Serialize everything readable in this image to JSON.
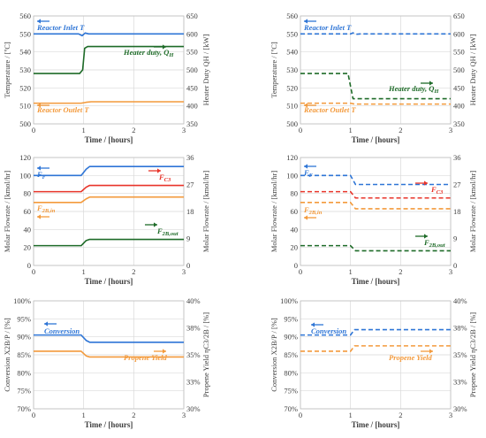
{
  "chart_data": [
    {
      "type": "line",
      "panel": "top-left",
      "title": "",
      "xlabel": "Time / [hours]",
      "ylabel": "Temperature / [ºC]",
      "y2label": "Heater Duty QH / [kW]",
      "xlim": [
        0,
        3
      ],
      "ylim": [
        500,
        560
      ],
      "y2lim": [
        350,
        650
      ],
      "xticks": [
        "0",
        "1",
        "2",
        "3"
      ],
      "yticks": [
        "500",
        "510",
        "520",
        "530",
        "540",
        "550",
        "560"
      ],
      "y2ticks": [
        "350",
        "400",
        "450",
        "500",
        "550",
        "600",
        "650"
      ],
      "series": [
        {
          "name": "Reactor Inlet T",
          "axis": "left",
          "color": "#2e75d6",
          "dash": "solid",
          "x": [
            0,
            0.9,
            0.97,
            1.03,
            1.1,
            3
          ],
          "y": [
            550,
            550,
            549,
            550.5,
            550,
            550
          ]
        },
        {
          "name": "Heater duty, QH",
          "axis": "right",
          "color": "#1e6b28",
          "dash": "solid",
          "x": [
            0,
            0.92,
            0.98,
            1.02,
            1.08,
            3
          ],
          "y": [
            490,
            490,
            500,
            560,
            565,
            565
          ]
        },
        {
          "name": "Reactor Outlet T",
          "axis": "left",
          "color": "#f39a3c",
          "dash": "solid",
          "x": [
            0,
            0.95,
            1.05,
            1.15,
            3
          ],
          "y": [
            511.5,
            511.5,
            512,
            512.3,
            512.3
          ]
        }
      ],
      "annotations": [
        {
          "text": "Reactor Inlet T",
          "color": "#2e75d6",
          "arrow": "left"
        },
        {
          "text": "Heater duty, Q",
          "sub": "H",
          "color": "#1e6b28",
          "arrow": "right"
        },
        {
          "text": "Reactor Outlet T",
          "color": "#f39a3c",
          "arrow": "left"
        }
      ]
    },
    {
      "type": "line",
      "panel": "top-right",
      "title": "",
      "xlabel": "Time / [hours]",
      "ylabel": "Temperature / [ºC]",
      "y2label": "Heater Duty QH / [kW]",
      "xlim": [
        0,
        3
      ],
      "ylim": [
        500,
        560
      ],
      "y2lim": [
        350,
        650
      ],
      "xticks": [
        "0",
        "1",
        "2",
        "3"
      ],
      "yticks": [
        "500",
        "510",
        "520",
        "530",
        "540",
        "550",
        "560"
      ],
      "y2ticks": [
        "350",
        "400",
        "450",
        "500",
        "550",
        "600",
        "650"
      ],
      "series": [
        {
          "name": "Reactor Inlet T",
          "axis": "left",
          "color": "#2e75d6",
          "dash": "dashed",
          "x": [
            0,
            1.0,
            1.05,
            1.1,
            1.2,
            3
          ],
          "y": [
            550,
            550,
            550.6,
            549.8,
            550,
            550
          ]
        },
        {
          "name": "Heater duty, QH",
          "axis": "right",
          "color": "#1e6b28",
          "dash": "dashed",
          "x": [
            0,
            0.95,
            1.05,
            3
          ],
          "y": [
            490,
            490,
            420,
            420
          ]
        },
        {
          "name": "Reactor Outlet T",
          "axis": "left",
          "color": "#f39a3c",
          "dash": "dashed",
          "x": [
            0,
            1.0,
            1.08,
            3
          ],
          "y": [
            511.5,
            511.5,
            511,
            511
          ]
        }
      ],
      "annotations": [
        {
          "text": "Reactor Inlet T",
          "color": "#2e75d6",
          "arrow": "left"
        },
        {
          "text": "Heater duty, Q",
          "sub": "H",
          "color": "#1e6b28",
          "arrow": "right"
        },
        {
          "text": "Reactor Outlet T",
          "color": "#f39a3c",
          "arrow": "left"
        }
      ]
    },
    {
      "type": "line",
      "panel": "middle-left",
      "title": "",
      "xlabel": "Time / [hours]",
      "ylabel": "Molar Flowrate / [kmol/hr]",
      "y2label": "Molar Flowrate / [kmol/hr]",
      "xlim": [
        0,
        3
      ],
      "ylim": [
        0,
        120
      ],
      "y2lim": [
        0,
        36
      ],
      "xticks": [
        "0",
        "1",
        "2",
        "3"
      ],
      "yticks": [
        "0",
        "20",
        "40",
        "60",
        "80",
        "100",
        "120"
      ],
      "y2ticks": [
        "0",
        "9",
        "18",
        "27",
        "36"
      ],
      "series": [
        {
          "name": "FF",
          "axis": "left",
          "color": "#2e75d6",
          "dash": "solid",
          "x": [
            0,
            0.95,
            1.05,
            1.12,
            3
          ],
          "y": [
            100,
            100,
            107,
            110,
            110
          ]
        },
        {
          "name": "FC3",
          "axis": "left",
          "color": "#e8342a",
          "dash": "solid",
          "x": [
            0,
            0.95,
            1.05,
            1.12,
            3
          ],
          "y": [
            82,
            82,
            87,
            89,
            89
          ]
        },
        {
          "name": "F2B,in",
          "axis": "left",
          "color": "#f39a3c",
          "dash": "solid",
          "x": [
            0,
            0.95,
            1.05,
            1.12,
            3
          ],
          "y": [
            70,
            70,
            74,
            76,
            76
          ]
        },
        {
          "name": "F2B,out",
          "axis": "right",
          "color": "#1e6b28",
          "dash": "solid",
          "x": [
            0,
            0.95,
            1.05,
            1.12,
            3
          ],
          "y": [
            6.6,
            6.6,
            8.3,
            8.7,
            8.7
          ]
        }
      ],
      "annotations": [
        {
          "text": "F",
          "sub": "F",
          "color": "#2e75d6",
          "arrow": "left"
        },
        {
          "text": "F",
          "sub": "C3",
          "color": "#e8342a",
          "arrow": "right"
        },
        {
          "text": "F",
          "sub": "2B,in",
          "color": "#f39a3c",
          "arrow": "left"
        },
        {
          "text": "F",
          "sub": "2B,out",
          "color": "#1e6b28",
          "arrow": "right"
        }
      ]
    },
    {
      "type": "line",
      "panel": "middle-right",
      "title": "",
      "xlabel": "Time / [hours]",
      "ylabel": "Molar Flowrate / [kmol/hr]",
      "y2label": "Molar Flowrate / [kmol/hr]",
      "xlim": [
        0,
        3
      ],
      "ylim": [
        0,
        120
      ],
      "y2lim": [
        0,
        36
      ],
      "xticks": [
        "0",
        "1",
        "2",
        "3"
      ],
      "yticks": [
        "0",
        "20",
        "40",
        "60",
        "80",
        "100",
        "120"
      ],
      "y2ticks": [
        "0",
        "9",
        "18",
        "27",
        "36"
      ],
      "series": [
        {
          "name": "FF",
          "axis": "left",
          "color": "#2e75d6",
          "dash": "dashed",
          "x": [
            0,
            1.0,
            1.1,
            3
          ],
          "y": [
            100,
            100,
            90,
            90
          ]
        },
        {
          "name": "FC3",
          "axis": "left",
          "color": "#e8342a",
          "dash": "dashed",
          "x": [
            0,
            1.0,
            1.1,
            3
          ],
          "y": [
            82,
            82,
            75,
            75
          ]
        },
        {
          "name": "F2B,in",
          "axis": "left",
          "color": "#f39a3c",
          "dash": "dashed",
          "x": [
            0,
            1.0,
            1.1,
            3
          ],
          "y": [
            70,
            70,
            63,
            63
          ]
        },
        {
          "name": "F2B,out",
          "axis": "right",
          "color": "#1e6b28",
          "dash": "dashed",
          "x": [
            0,
            1.0,
            1.1,
            3
          ],
          "y": [
            6.6,
            6.6,
            4.9,
            4.9
          ]
        }
      ],
      "annotations": [
        {
          "text": "F",
          "sub": "F",
          "color": "#2e75d6",
          "arrow": "left"
        },
        {
          "text": "F",
          "sub": "C3",
          "color": "#e8342a",
          "arrow": "right"
        },
        {
          "text": "F",
          "sub": "2B,in",
          "color": "#f39a3c",
          "arrow": "left"
        },
        {
          "text": "F",
          "sub": "2B,out",
          "color": "#1e6b28",
          "arrow": "right"
        }
      ]
    },
    {
      "type": "line",
      "panel": "bottom-left",
      "title": "",
      "xlabel": "Time / [hours]",
      "ylabel": "Conversion X2B/P / [%]",
      "y2label": "Propene Yield ηC3/2B / [%]",
      "xlim": [
        0,
        3
      ],
      "ylim": [
        70,
        100
      ],
      "y2lim": [
        30,
        40
      ],
      "xticks": [
        "0",
        "1",
        "2",
        "3"
      ],
      "yticks": [
        "70%",
        "75%",
        "80%",
        "85%",
        "90%",
        "95%",
        "100%"
      ],
      "y2ticks": [
        "30%",
        "33%",
        "35%",
        "38%",
        "40%"
      ],
      "series": [
        {
          "name": "Conversion",
          "axis": "left",
          "color": "#2e75d6",
          "dash": "solid",
          "x": [
            0,
            0.95,
            1.05,
            1.12,
            3
          ],
          "y": [
            90.5,
            90.5,
            89,
            88.5,
            88.5
          ]
        },
        {
          "name": "Propene Yield",
          "axis": "right",
          "color": "#f39a3c",
          "dash": "solid",
          "x": [
            0,
            0.95,
            1.05,
            1.12,
            3
          ],
          "y": [
            35.33,
            35.33,
            34.9,
            34.8,
            34.8
          ]
        }
      ],
      "annotations": [
        {
          "text": "Conversion",
          "color": "#2e75d6",
          "arrow": "left"
        },
        {
          "text": "Propene Yield",
          "color": "#f39a3c",
          "arrow": "right"
        }
      ]
    },
    {
      "type": "line",
      "panel": "bottom-right",
      "title": "",
      "xlabel": "Time / [hours]",
      "ylabel": "Conversion X2B/P / [%]",
      "y2label": "Propene Yield ηC3/2B / [%]",
      "xlim": [
        0,
        3
      ],
      "ylim": [
        70,
        100
      ],
      "y2lim": [
        30,
        40
      ],
      "xticks": [
        "0",
        "1",
        "2",
        "3"
      ],
      "yticks": [
        "70%",
        "75%",
        "80%",
        "85%",
        "90%",
        "95%",
        "100%"
      ],
      "y2ticks": [
        "30%",
        "33%",
        "35%",
        "38%",
        "40%"
      ],
      "series": [
        {
          "name": "Conversion",
          "axis": "left",
          "color": "#2e75d6",
          "dash": "dashed",
          "x": [
            0,
            1.0,
            1.08,
            3
          ],
          "y": [
            90.5,
            90.5,
            92,
            92
          ]
        },
        {
          "name": "Propene Yield",
          "axis": "right",
          "color": "#f39a3c",
          "dash": "dashed",
          "x": [
            0,
            1.0,
            1.08,
            3
          ],
          "y": [
            35.33,
            35.33,
            35.83,
            35.83
          ]
        }
      ],
      "annotations": [
        {
          "text": "Conversion",
          "color": "#2e75d6",
          "arrow": "left"
        },
        {
          "text": "Propene Yield",
          "color": "#f39a3c",
          "arrow": "right"
        }
      ]
    }
  ]
}
